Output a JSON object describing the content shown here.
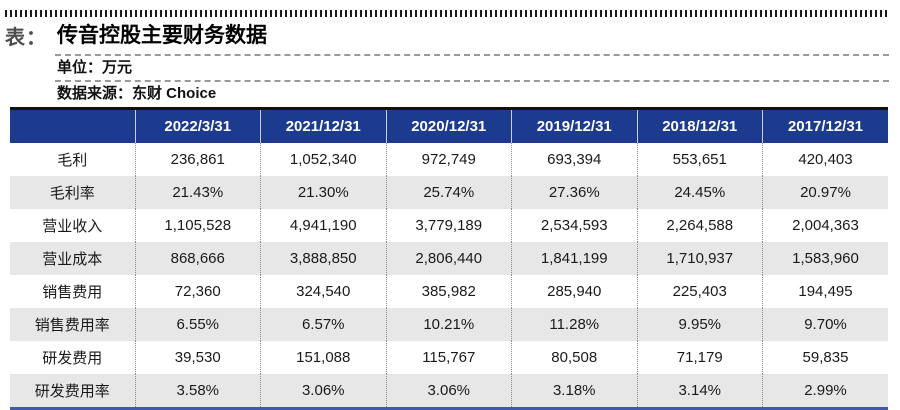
{
  "page": {
    "tag_label": "表：",
    "title": "传音控股主要财务数据",
    "unit_label": "单位：万元",
    "source_label": "数据来源：东财 Choice"
  },
  "colors": {
    "header_bg": "#1c3a8e",
    "header_text": "#ffffff",
    "row_alt_bg": "#e7e7e7",
    "table_top_border": "#111111",
    "table_bottom_border": "#3f5aa9",
    "tag_text": "#4d4d4d"
  },
  "chart_data": {
    "type": "table",
    "title": "传音控股主要财务数据",
    "unit": "万元",
    "source": "东财 Choice",
    "columns": [
      "",
      "2022/3/31",
      "2021/12/31",
      "2020/12/31",
      "2019/12/31",
      "2018/12/31",
      "2017/12/31"
    ],
    "rows": [
      {
        "label": "毛利",
        "values": [
          "236,861",
          "1,052,340",
          "972,749",
          "693,394",
          "553,651",
          "420,403"
        ]
      },
      {
        "label": "毛利率",
        "values": [
          "21.43%",
          "21.30%",
          "25.74%",
          "27.36%",
          "24.45%",
          "20.97%"
        ]
      },
      {
        "label": "营业收入",
        "values": [
          "1,105,528",
          "4,941,190",
          "3,779,189",
          "2,534,593",
          "2,264,588",
          "2,004,363"
        ]
      },
      {
        "label": "营业成本",
        "values": [
          "868,666",
          "3,888,850",
          "2,806,440",
          "1,841,199",
          "1,710,937",
          "1,583,960"
        ]
      },
      {
        "label": "销售费用",
        "values": [
          "72,360",
          "324,540",
          "385,982",
          "285,940",
          "225,403",
          "194,495"
        ]
      },
      {
        "label": "销售费用率",
        "values": [
          "6.55%",
          "6.57%",
          "10.21%",
          "11.28%",
          "9.95%",
          "9.70%"
        ]
      },
      {
        "label": "研发费用",
        "values": [
          "39,530",
          "151,088",
          "115,767",
          "80,508",
          "71,179",
          "59,835"
        ]
      },
      {
        "label": "研发费用率",
        "values": [
          "3.58%",
          "3.06%",
          "3.06%",
          "3.18%",
          "3.14%",
          "2.99%"
        ]
      }
    ]
  }
}
